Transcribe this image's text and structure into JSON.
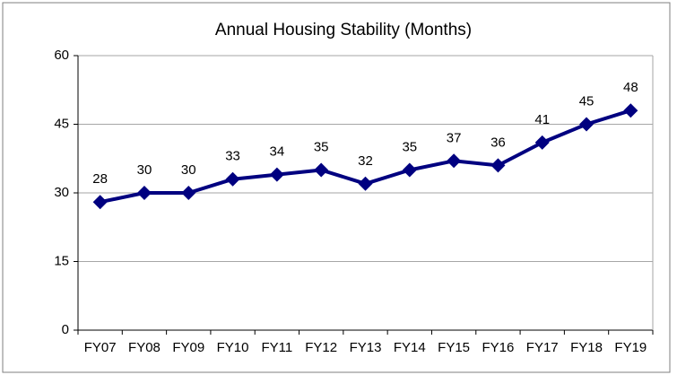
{
  "chart_data": {
    "type": "line",
    "title": "Annual Housing Stability (Months)",
    "categories": [
      "FY07",
      "FY08",
      "FY09",
      "FY10",
      "FY11",
      "FY12",
      "FY13",
      "FY14",
      "FY15",
      "FY16",
      "FY17",
      "FY18",
      "FY19"
    ],
    "values": [
      28,
      30,
      30,
      33,
      34,
      35,
      32,
      35,
      37,
      36,
      41,
      45,
      48
    ],
    "color": "#000080",
    "ylim": [
      0,
      60
    ],
    "yticks": [
      0,
      15,
      30,
      45,
      60
    ],
    "grid": true
  }
}
